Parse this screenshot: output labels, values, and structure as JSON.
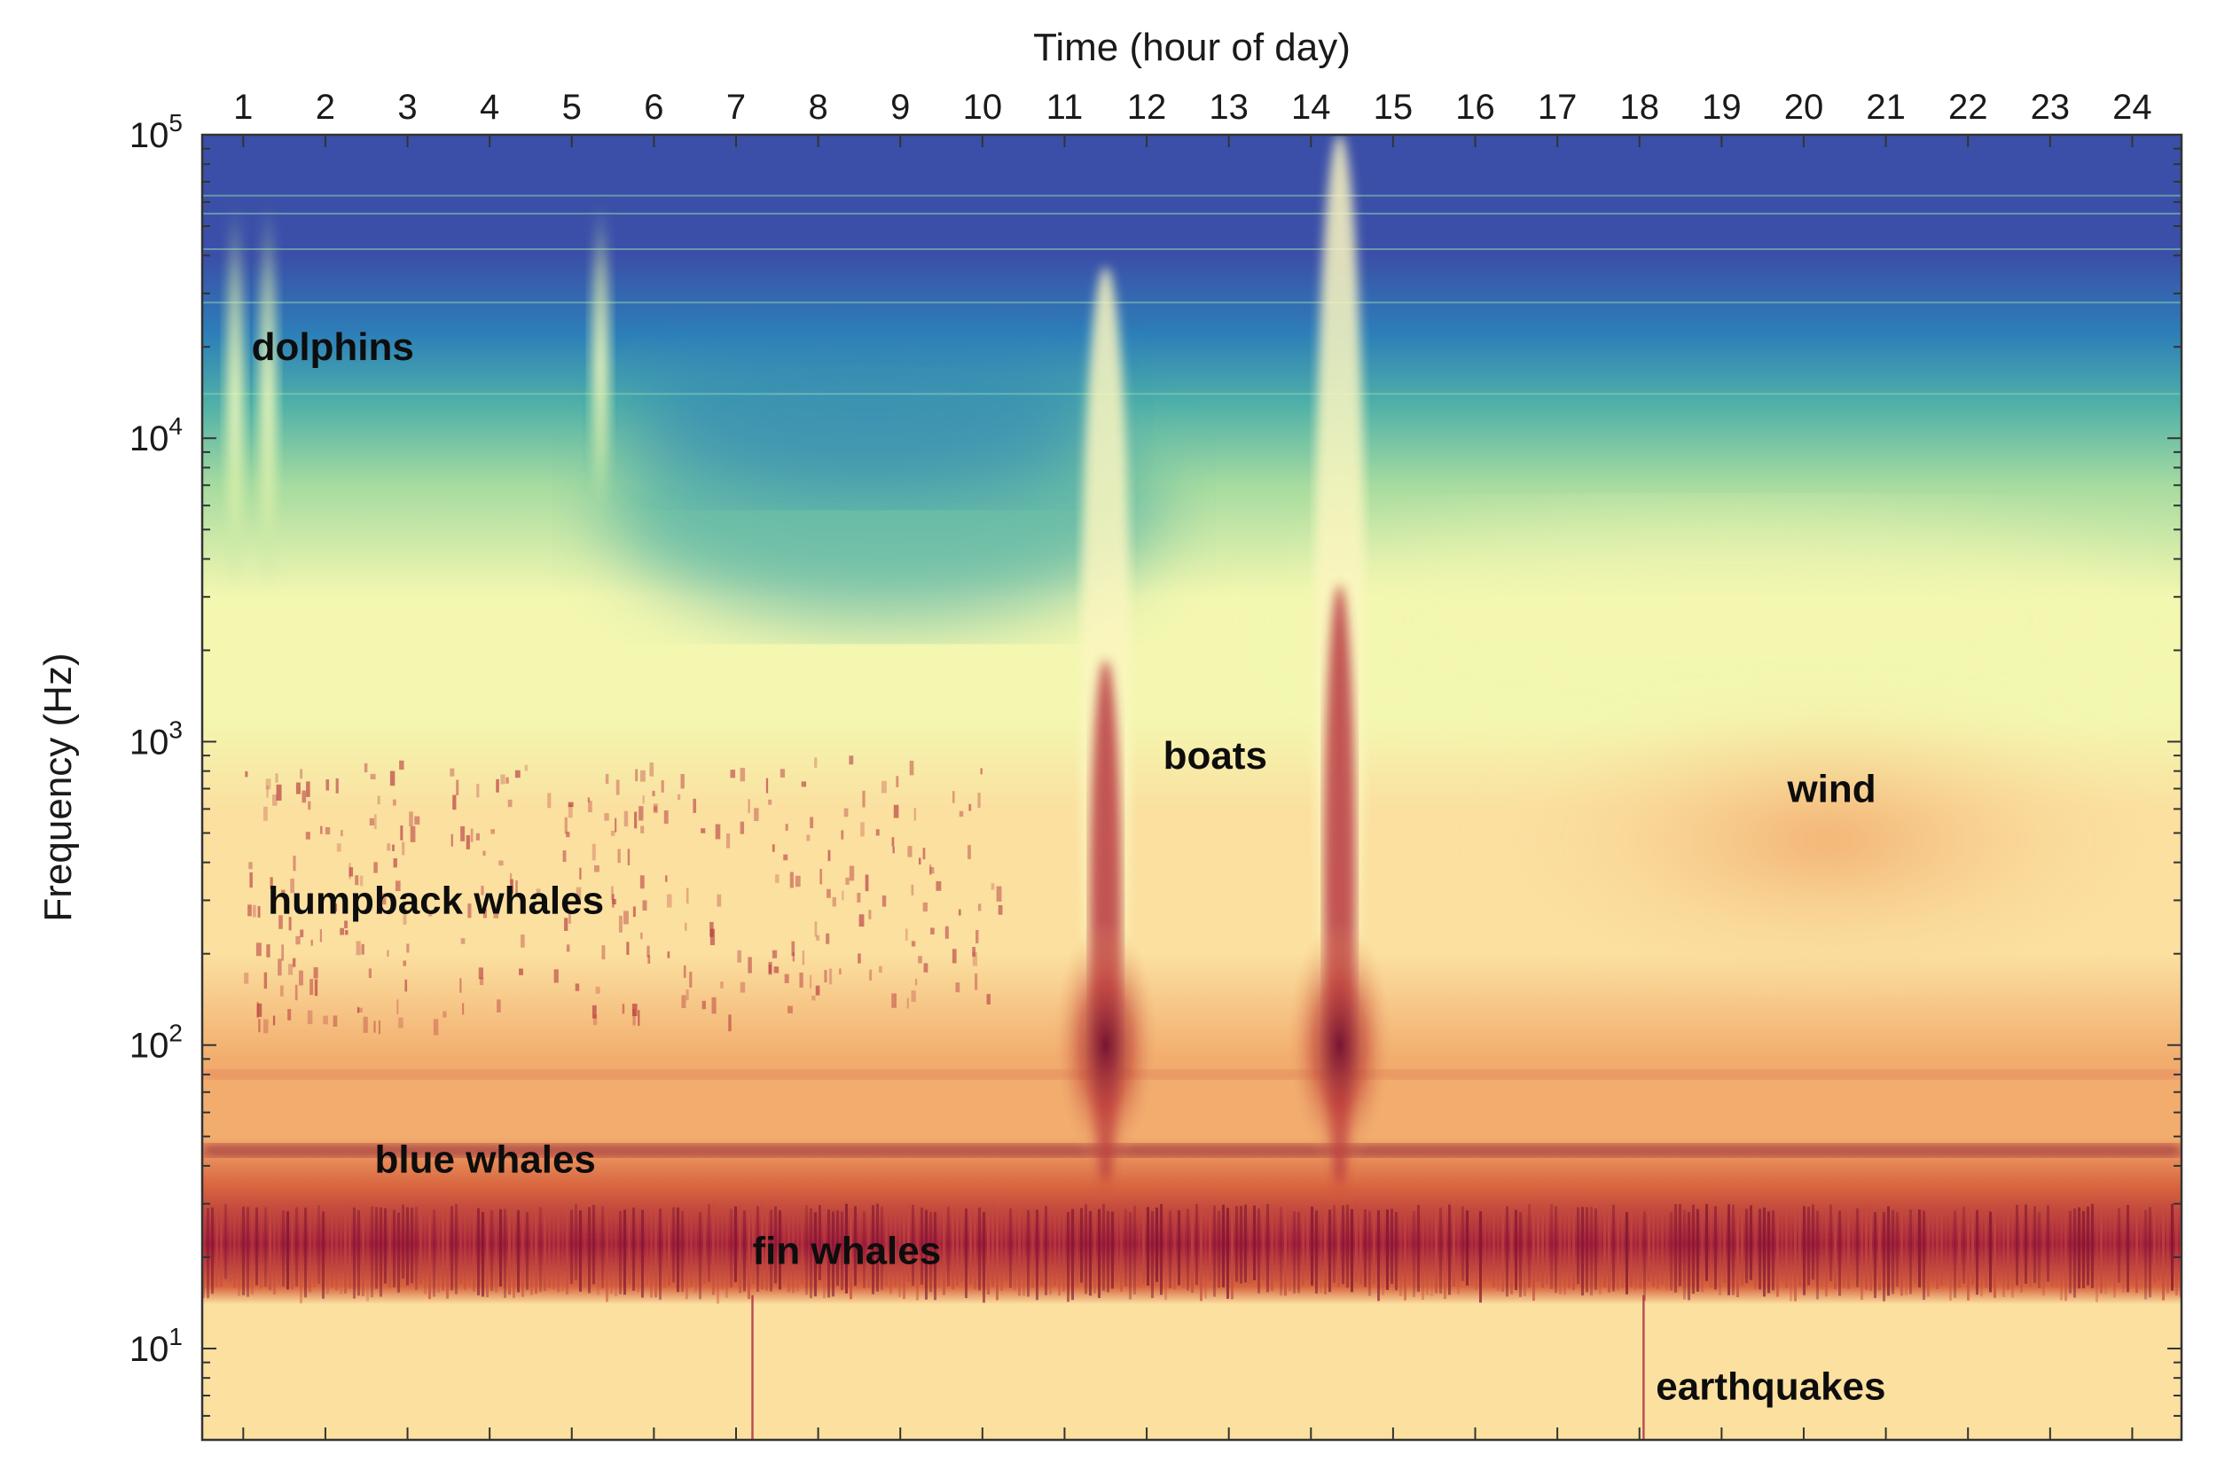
{
  "chart_data": {
    "type": "heatmap",
    "xlabel": "Time (hour of day)",
    "ylabel": "Frequency (Hz)",
    "x_ticks": [
      "1",
      "2",
      "3",
      "4",
      "5",
      "6",
      "7",
      "8",
      "9",
      "10",
      "11",
      "12",
      "13",
      "14",
      "15",
      "16",
      "17",
      "18",
      "19",
      "20",
      "21",
      "22",
      "23",
      "24"
    ],
    "x_range": [
      0.5,
      24.6
    ],
    "y_scale": "log",
    "y_range": [
      5,
      100000
    ],
    "y_ticks": [
      {
        "value": 10,
        "base": "10",
        "exp": "1"
      },
      {
        "value": 100,
        "base": "10",
        "exp": "2"
      },
      {
        "value": 1000,
        "base": "10",
        "exp": "3"
      },
      {
        "value": 10000,
        "base": "10",
        "exp": "4"
      },
      {
        "value": 100000,
        "base": "10",
        "exp": "5"
      }
    ],
    "colormap": [
      "#3b4fa8",
      "#2d7fb8",
      "#4fb0a8",
      "#a6dba0",
      "#f3f7b0",
      "#fbe0a0",
      "#f2ad6e",
      "#d8643f",
      "#a3203c",
      "#6e0f2e"
    ],
    "annotations": [
      {
        "label": "dolphins",
        "x": 1.1,
        "y": 20000
      },
      {
        "label": "humpback whales",
        "x": 1.3,
        "y": 300
      },
      {
        "label": "boats",
        "x": 12.2,
        "y": 900
      },
      {
        "label": "wind",
        "x": 19.8,
        "y": 700
      },
      {
        "label": "blue whales",
        "x": 2.6,
        "y": 42
      },
      {
        "label": "fin whales",
        "x": 7.2,
        "y": 21
      },
      {
        "label": "earthquakes",
        "x": 18.2,
        "y": 7.5
      }
    ],
    "sources": [
      {
        "name": "dolphins",
        "hours": [
          0.9,
          1.3
        ],
        "freq_range_hz": [
          3000,
          60000
        ]
      },
      {
        "name": "dolphins",
        "hours": [
          5.35
        ],
        "freq_range_hz": [
          5000,
          60000
        ]
      },
      {
        "name": "boats",
        "hours": [
          11.5
        ],
        "freq_range_hz": [
          40,
          30000
        ]
      },
      {
        "name": "boats",
        "hours": [
          14.35
        ],
        "freq_range_hz": [
          40,
          80000
        ]
      },
      {
        "name": "blue whales",
        "freq_hz": 45
      },
      {
        "name": "fin whales",
        "freq_range_hz": [
          15,
          30
        ]
      },
      {
        "name": "wind",
        "hours": [
          16,
          24.6
        ],
        "freq_range_hz": [
          150,
          1500
        ]
      },
      {
        "name": "earthquakes",
        "hours": [
          7.2,
          18.05
        ],
        "freq_range_hz": [
          5,
          15
        ]
      }
    ]
  }
}
